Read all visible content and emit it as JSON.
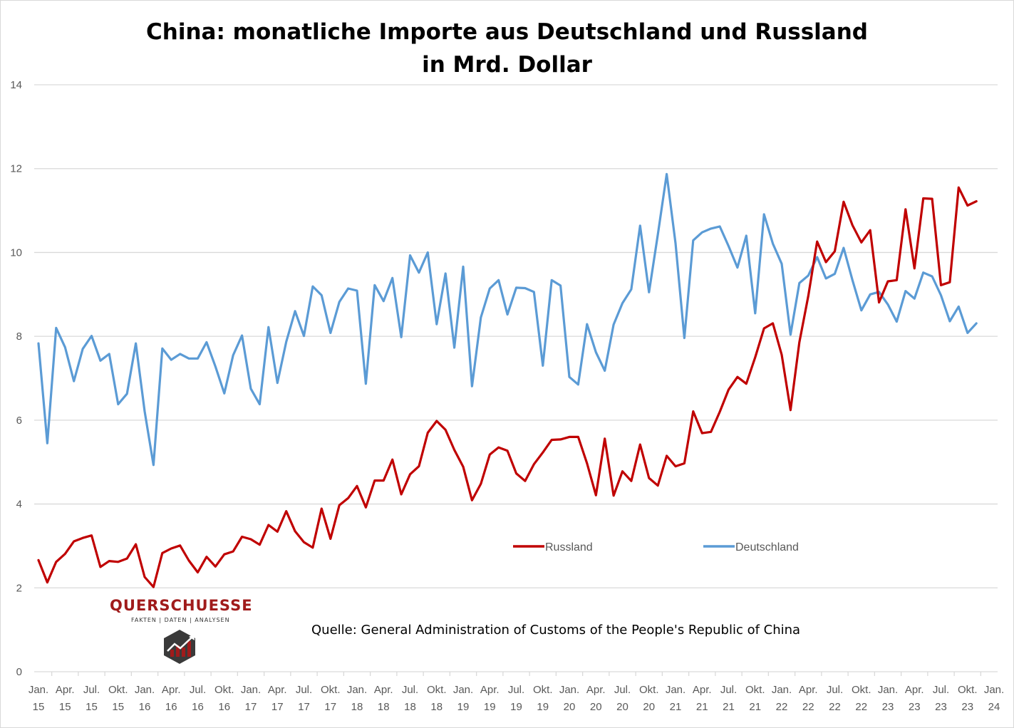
{
  "chart_data": {
    "type": "line",
    "title_line1": "China: monatliche Importe aus Deutschland und Russland",
    "title_line2": "in Mrd. Dollar",
    "ylim": [
      0,
      14
    ],
    "y_ticks": [
      0,
      2,
      4,
      6,
      8,
      10,
      12,
      14
    ],
    "grid": true,
    "legend_position": "center-right",
    "x_tick_labels": [
      {
        "month": "Jan.",
        "year": "15"
      },
      {
        "month": "Apr.",
        "year": "15"
      },
      {
        "month": "Jul.",
        "year": "15"
      },
      {
        "month": "Okt.",
        "year": "15"
      },
      {
        "month": "Jan.",
        "year": "16"
      },
      {
        "month": "Apr.",
        "year": "16"
      },
      {
        "month": "Jul.",
        "year": "16"
      },
      {
        "month": "Okt.",
        "year": "16"
      },
      {
        "month": "Jan.",
        "year": "17"
      },
      {
        "month": "Apr.",
        "year": "17"
      },
      {
        "month": "Jul.",
        "year": "17"
      },
      {
        "month": "Okt.",
        "year": "17"
      },
      {
        "month": "Jan.",
        "year": "18"
      },
      {
        "month": "Apr.",
        "year": "18"
      },
      {
        "month": "Jul.",
        "year": "18"
      },
      {
        "month": "Okt.",
        "year": "18"
      },
      {
        "month": "Jan.",
        "year": "19"
      },
      {
        "month": "Apr.",
        "year": "19"
      },
      {
        "month": "Jul.",
        "year": "19"
      },
      {
        "month": "Okt.",
        "year": "19"
      },
      {
        "month": "Jan.",
        "year": "20"
      },
      {
        "month": "Apr.",
        "year": "20"
      },
      {
        "month": "Jul.",
        "year": "20"
      },
      {
        "month": "Okt.",
        "year": "20"
      },
      {
        "month": "Jan.",
        "year": "21"
      },
      {
        "month": "Apr.",
        "year": "21"
      },
      {
        "month": "Jul.",
        "year": "21"
      },
      {
        "month": "Okt.",
        "year": "21"
      },
      {
        "month": "Jan.",
        "year": "22"
      },
      {
        "month": "Apr.",
        "year": "22"
      },
      {
        "month": "Jul.",
        "year": "22"
      },
      {
        "month": "Okt.",
        "year": "22"
      },
      {
        "month": "Jan.",
        "year": "23"
      },
      {
        "month": "Apr.",
        "year": "23"
      },
      {
        "month": "Jul.",
        "year": "23"
      },
      {
        "month": "Okt.",
        "year": "23"
      },
      {
        "month": "Jan.",
        "year": "24"
      }
    ],
    "series": [
      {
        "name": "Russland",
        "color": "#c00000",
        "values": [
          2.66,
          2.13,
          2.62,
          2.81,
          3.11,
          3.19,
          3.25,
          2.5,
          2.64,
          2.62,
          2.7,
          3.04,
          2.26,
          2.02,
          2.83,
          2.94,
          3.01,
          2.65,
          2.37,
          2.74,
          2.51,
          2.8,
          2.87,
          3.22,
          3.16,
          3.03,
          3.5,
          3.34,
          3.83,
          3.35,
          3.09,
          2.96,
          3.89,
          3.17,
          3.97,
          4.14,
          4.43,
          3.92,
          4.56,
          4.56,
          5.06,
          4.23,
          4.71,
          4.9,
          5.7,
          5.98,
          5.77,
          5.29,
          4.89,
          4.09,
          4.48,
          5.18,
          5.35,
          5.27,
          4.73,
          4.55,
          4.95,
          5.23,
          5.53,
          5.54,
          5.6,
          5.6,
          4.97,
          4.21,
          5.56,
          4.2,
          4.78,
          4.55,
          5.42,
          4.62,
          4.44,
          5.15,
          4.9,
          4.97,
          6.21,
          5.69,
          5.72,
          6.2,
          6.73,
          7.03,
          6.87,
          7.5,
          8.19,
          8.31,
          7.56,
          6.24,
          7.86,
          8.96,
          10.26,
          9.77,
          10.03,
          11.21,
          10.65,
          10.24,
          10.53,
          8.81,
          9.31,
          9.34,
          11.03,
          9.62,
          11.29,
          11.28,
          9.22,
          9.29,
          11.55,
          11.12,
          11.22
        ]
      },
      {
        "name": "Deutschland",
        "color": "#5b9bd5",
        "values": [
          7.83,
          5.45,
          8.2,
          7.74,
          6.93,
          7.7,
          8.01,
          7.42,
          7.58,
          6.38,
          6.63,
          7.83,
          6.21,
          4.93,
          7.71,
          7.44,
          7.58,
          7.47,
          7.47,
          7.86,
          7.28,
          6.64,
          7.55,
          8.02,
          6.75,
          6.38,
          8.22,
          6.89,
          7.87,
          8.6,
          8.01,
          9.19,
          8.98,
          8.08,
          8.82,
          9.14,
          9.09,
          6.87,
          9.22,
          8.84,
          9.39,
          7.98,
          9.93,
          9.52,
          10.0,
          8.29,
          9.5,
          7.73,
          9.66,
          6.81,
          8.45,
          9.14,
          9.34,
          8.52,
          9.16,
          9.15,
          9.06,
          7.3,
          9.34,
          9.21,
          7.03,
          6.85,
          8.29,
          7.62,
          7.18,
          8.28,
          8.79,
          9.12,
          10.64,
          9.05,
          10.43,
          11.87,
          10.22,
          7.96,
          10.29,
          10.48,
          10.57,
          10.62,
          10.15,
          9.64,
          10.4,
          8.55,
          10.91,
          10.21,
          9.73,
          8.04,
          9.27,
          9.45,
          9.89,
          9.38,
          9.49,
          10.11,
          9.34,
          8.62,
          9.0,
          9.06,
          8.76,
          8.35,
          9.08,
          8.9,
          9.52,
          9.43,
          8.98,
          8.36,
          8.71,
          8.08,
          8.31
        ]
      }
    ]
  },
  "source": "Quelle: General Administration of Customs of the People's Republic of China",
  "logo": {
    "name": "QUERSCHUESSE",
    "tagline": "FAKTEN | DATEN | ANALYSEN"
  }
}
